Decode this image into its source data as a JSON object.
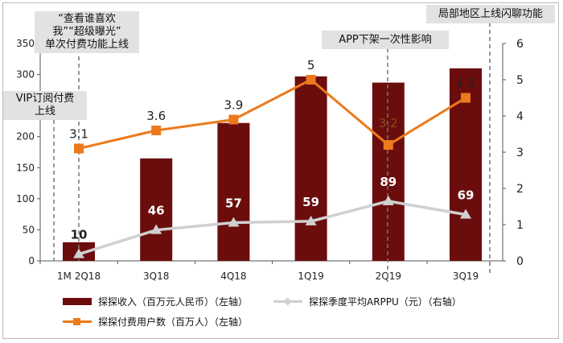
{
  "chart_data": {
    "type": "bar+line",
    "categories": [
      "1M 2Q18",
      "3Q18",
      "4Q18",
      "1Q19",
      "2Q19",
      "3Q19"
    ],
    "series": [
      {
        "name": "探探收入（百万元人民币）（左轴）",
        "type": "bar",
        "axis": "left",
        "values": [
          30,
          165,
          222,
          297,
          287,
          310
        ],
        "color": "#6b0d0d"
      },
      {
        "name": "探探季度平均ARPPU（元）（右轴）",
        "type": "line",
        "axis": "right",
        "values": [
          10,
          46,
          57,
          59,
          89,
          69
        ],
        "labels": [
          "10",
          "46",
          "57",
          "59",
          "89",
          "69"
        ],
        "color": "#d0d0d0"
      },
      {
        "name": "探探付费用户数（百万人）（左轴）",
        "type": "line",
        "axis": "right",
        "values": [
          3.1,
          3.6,
          3.9,
          5.0,
          3.2,
          4.5
        ],
        "labels": [
          "3.1",
          "3.6",
          "3.9",
          "5",
          "3.2",
          "4.5"
        ],
        "color": "#ec7a1c"
      }
    ],
    "left_axis": {
      "min": 0,
      "max": 350,
      "ticks": [
        "0",
        "50",
        "100",
        "150",
        "200",
        "250",
        "300",
        "350"
      ]
    },
    "right_axis": {
      "min": 0,
      "max": 6,
      "ticks": [
        "0",
        "1",
        "2",
        "3",
        "4",
        "5",
        "6"
      ]
    },
    "annotations": [
      {
        "text": "“查看谁喜欢我”“超级曝光”单次付费功能上线",
        "line1": "“查看谁喜欢",
        "line2": "我”“超级曝光”",
        "line3": "单次付费功能上线"
      },
      {
        "text": "VIP订阅付费上线",
        "line1": "VIP订阅付费",
        "line2": "上线"
      },
      {
        "text": "APP下架一次性影响"
      },
      {
        "text": "局部地区上线闪聊功能"
      }
    ]
  }
}
